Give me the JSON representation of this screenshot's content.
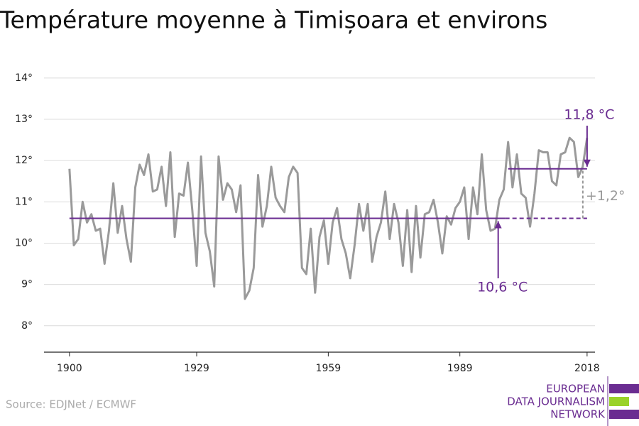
{
  "chart_data": {
    "type": "line",
    "title": "Température moyenne à Timișoara et environs",
    "source": "Source: EDJNet / ECMWF",
    "logo": [
      "EUROPEAN",
      "DATA JOURNALISM",
      "NETWORK"
    ],
    "x": [
      1900,
      1901,
      1902,
      1903,
      1904,
      1905,
      1906,
      1907,
      1908,
      1909,
      1910,
      1911,
      1912,
      1913,
      1914,
      1915,
      1916,
      1917,
      1918,
      1919,
      1920,
      1921,
      1922,
      1923,
      1924,
      1925,
      1926,
      1927,
      1928,
      1929,
      1930,
      1931,
      1932,
      1933,
      1934,
      1935,
      1936,
      1937,
      1938,
      1939,
      1940,
      1941,
      1942,
      1943,
      1944,
      1945,
      1946,
      1947,
      1948,
      1949,
      1950,
      1951,
      1952,
      1953,
      1954,
      1955,
      1956,
      1957,
      1958,
      1959,
      1960,
      1961,
      1962,
      1963,
      1964,
      1965,
      1966,
      1967,
      1968,
      1969,
      1970,
      1971,
      1972,
      1973,
      1974,
      1975,
      1976,
      1977,
      1978,
      1979,
      1980,
      1981,
      1982,
      1983,
      1984,
      1985,
      1986,
      1987,
      1988,
      1989,
      1990,
      1991,
      1992,
      1993,
      1994,
      1995,
      1996,
      1997,
      1998,
      1999,
      2000,
      2001,
      2002,
      2003,
      2004,
      2005,
      2006,
      2007,
      2008,
      2009,
      2010,
      2011,
      2012,
      2013,
      2014,
      2015,
      2016,
      2017,
      2018
    ],
    "series": [
      {
        "color": "#9a9a9a",
        "values": [
          11.8,
          9.95,
          10.1,
          11.0,
          10.5,
          10.7,
          10.3,
          10.35,
          9.5,
          10.3,
          11.45,
          10.25,
          10.9,
          10.1,
          9.55,
          11.35,
          11.9,
          11.65,
          12.15,
          11.25,
          11.3,
          11.85,
          10.9,
          12.2,
          10.15,
          11.2,
          11.15,
          11.95,
          10.8,
          9.45,
          12.1,
          10.25,
          9.8,
          8.95,
          12.1,
          11.05,
          11.45,
          11.3,
          10.75,
          11.4,
          8.65,
          8.85,
          9.4,
          11.65,
          10.4,
          10.9,
          11.85,
          11.1,
          10.9,
          10.75,
          11.6,
          11.85,
          11.7,
          9.4,
          9.25,
          10.35,
          8.8,
          10.15,
          10.55,
          9.5,
          10.5,
          10.85,
          10.1,
          9.75,
          9.15,
          9.95,
          10.95,
          10.3,
          10.95,
          9.55,
          10.15,
          10.5,
          11.25,
          10.1,
          10.95,
          10.5,
          9.45,
          10.8,
          9.3,
          10.9,
          9.65,
          10.7,
          10.75,
          11.05,
          10.5,
          9.75,
          10.65,
          10.45,
          10.85,
          11.0,
          11.35,
          10.1,
          11.35,
          10.7,
          12.15,
          10.8,
          10.3,
          10.35,
          11.05,
          11.3,
          12.45,
          11.35,
          12.15,
          11.2,
          11.1,
          10.4,
          11.2,
          12.25,
          12.2,
          12.2,
          11.5,
          11.4,
          12.15,
          12.2,
          12.55,
          12.45,
          11.6,
          11.85,
          12.55
        ]
      }
    ],
    "reference_lines": [
      {
        "value": 10.6,
        "label": "10,6 °C",
        "color": "#6a2c91",
        "from": 1900,
        "to": 2018
      },
      {
        "value": 11.8,
        "label": "11,8 °C",
        "color": "#6a2c91",
        "from": 2000,
        "to": 2018
      }
    ],
    "difference_label": "+1,2°",
    "xlim": [
      1894.2,
      2019.8
    ],
    "xticks": [
      1900,
      1929,
      1959,
      1989,
      2018
    ],
    "ylim": [
      7.36,
      14.1
    ],
    "yticks": [
      {
        "value": 8,
        "label": "8°"
      },
      {
        "value": 9,
        "label": "9°"
      },
      {
        "value": 10,
        "label": "10°"
      },
      {
        "value": 11,
        "label": "11°"
      },
      {
        "value": 12,
        "label": "12°"
      },
      {
        "value": 13,
        "label": "13°"
      },
      {
        "value": 14,
        "label": "14°"
      }
    ],
    "grid": true
  }
}
